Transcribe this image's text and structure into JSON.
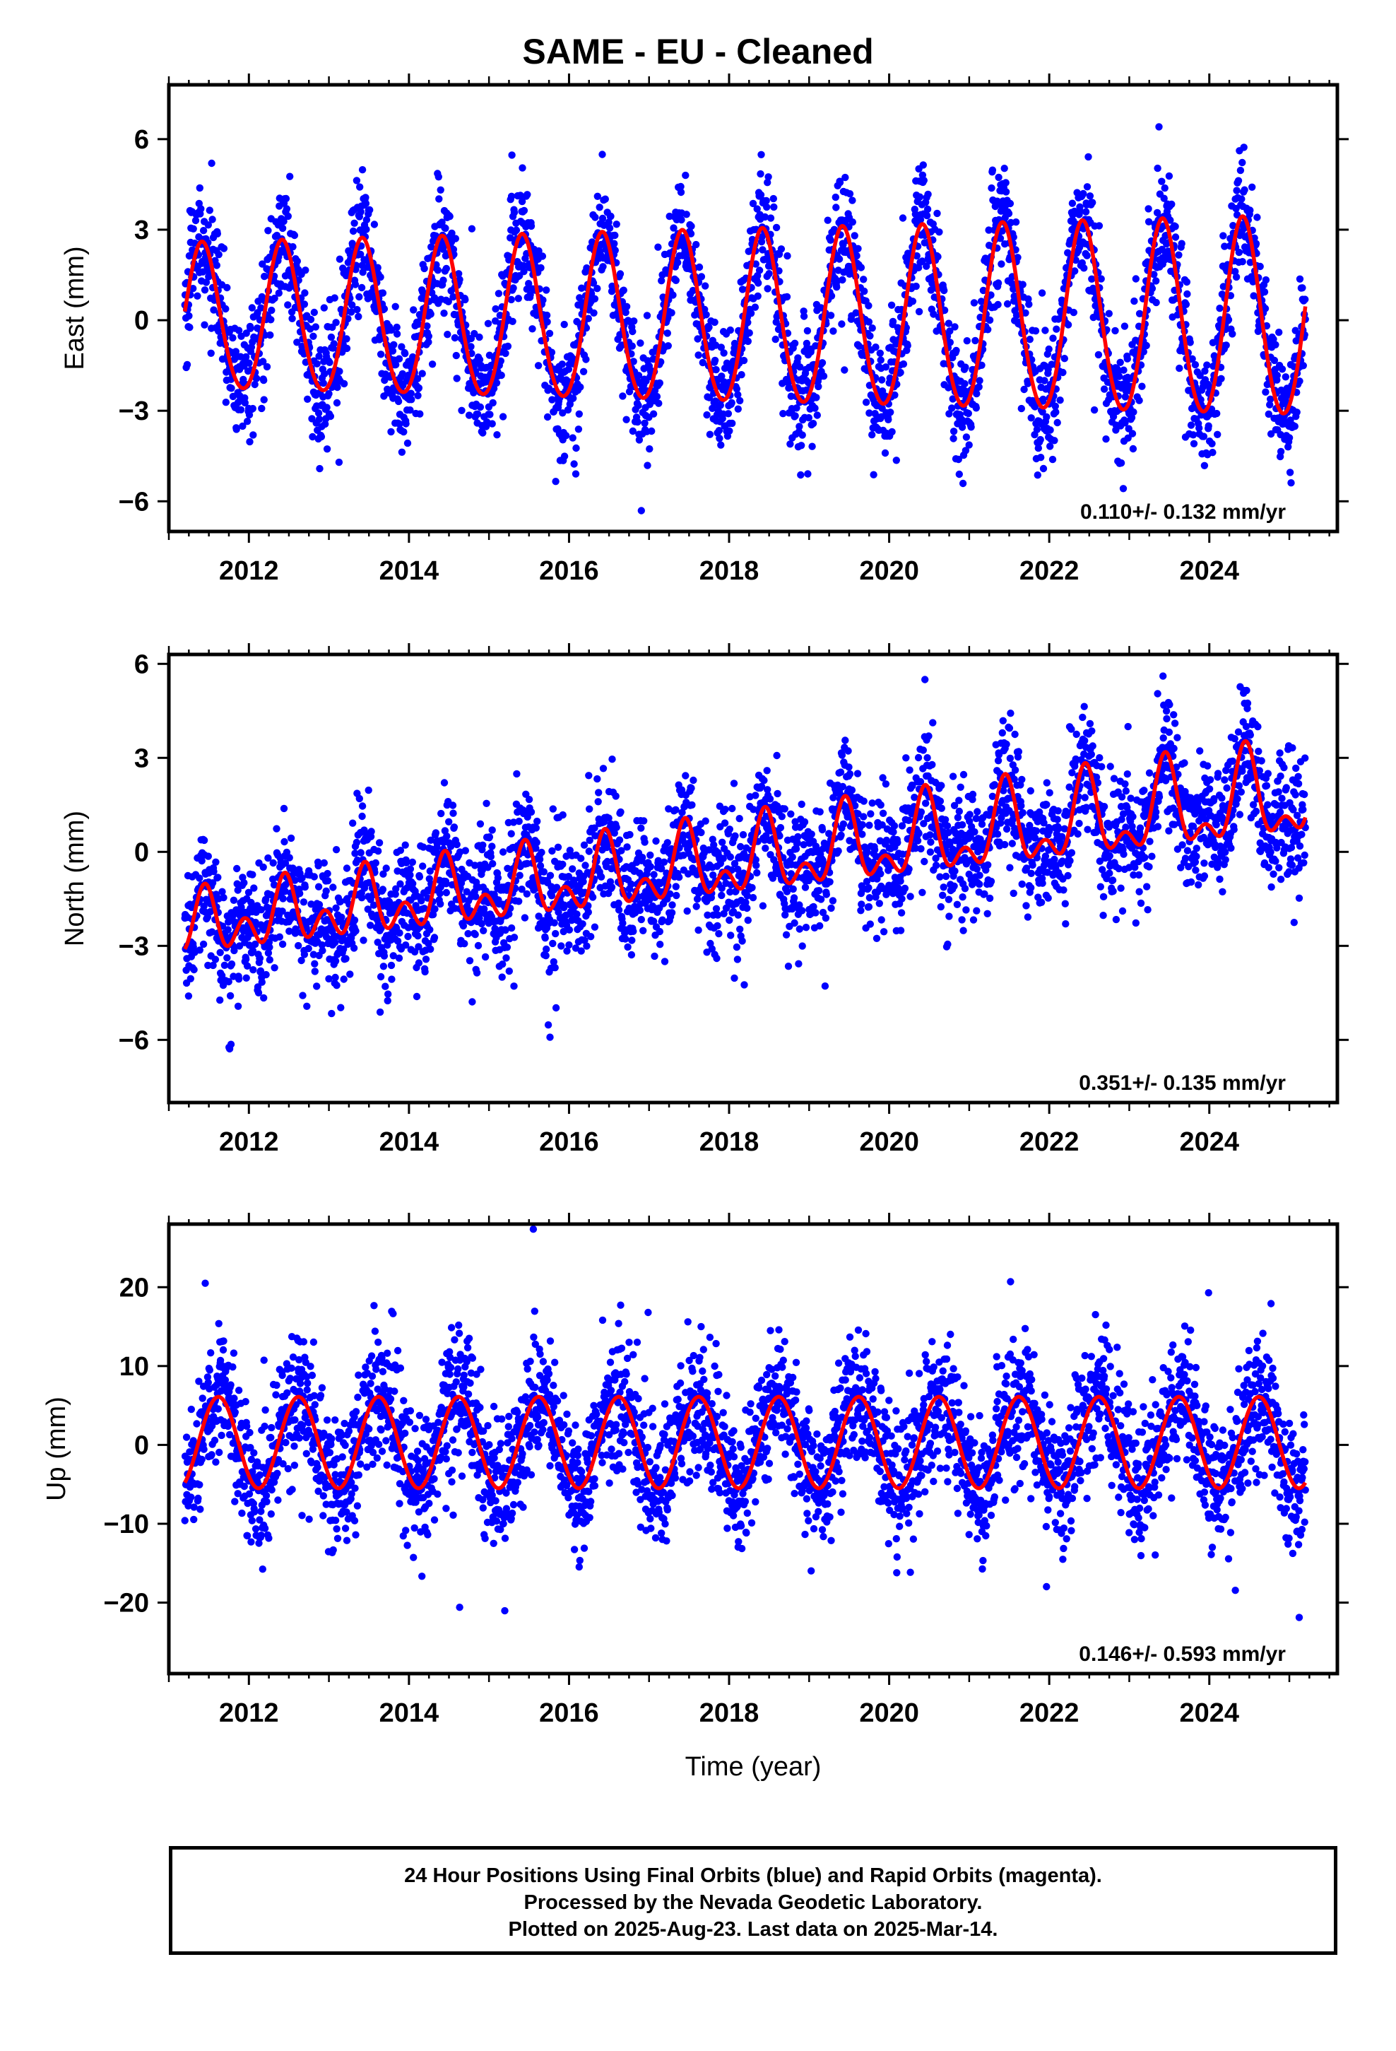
{
  "title": "SAME  - EU - Cleaned",
  "colors": {
    "final_orbits": "#0000ff",
    "model_fit": "#ff0000",
    "frame": "#000000"
  },
  "chart_data": [
    {
      "type": "scatter",
      "ylabel": "East (mm)",
      "xlim": [
        2011.0,
        2025.6
      ],
      "ylim": [
        -7.0,
        7.8
      ],
      "yticks": [
        -6,
        -3,
        0,
        3,
        6
      ],
      "xticks": [
        2012,
        2014,
        2016,
        2018,
        2020,
        2022,
        2024
      ],
      "trend": "0.110+/- 0.132 mm/yr",
      "fit": {
        "t_start": 2011.2,
        "t_end": 2025.2,
        "offset": 0.0,
        "drift": 0.0,
        "annual_start": 2.4,
        "annual_end": 3.3,
        "annual_phase_peak": 0.42,
        "semiannual": 0.2,
        "semiannual_phase_peak": 0.4
      },
      "scatter": {
        "spread": 1.0,
        "n": 3300
      }
    },
    {
      "type": "scatter",
      "ylabel": "North (mm)",
      "xlim": [
        2011.0,
        2025.6
      ],
      "ylim": [
        -8.0,
        6.3
      ],
      "yticks": [
        -6,
        -3,
        0,
        3,
        6
      ],
      "xticks": [
        2012,
        2014,
        2016,
        2018,
        2020,
        2022,
        2024
      ],
      "trend": "0.351+/- 0.135 mm/yr",
      "fit": {
        "t_start": 2011.2,
        "t_end": 2025.2,
        "offset": -2.4,
        "drift": 0.3,
        "annual_start": 0.6,
        "annual_end": 1.3,
        "annual_phase_peak": 0.45,
        "semiannual": 0.7,
        "semiannual_phase_peak": 0.45
      },
      "scatter": {
        "spread": 1.0,
        "n": 3300
      }
    },
    {
      "type": "scatter",
      "ylabel": "Up (mm)",
      "xlim": [
        2011.0,
        2025.6
      ],
      "ylim": [
        -29.0,
        28.0
      ],
      "yticks": [
        -20,
        -10,
        0,
        10,
        20
      ],
      "xticks": [
        2012,
        2014,
        2016,
        2018,
        2020,
        2022,
        2024
      ],
      "trend": "0.146+/- 0.593 mm/yr",
      "fit": {
        "t_start": 2011.2,
        "t_end": 2025.2,
        "offset": 0.3,
        "drift": 0.0,
        "annual_start": 5.8,
        "annual_end": 5.8,
        "annual_phase_peak": 0.62,
        "semiannual": 0.0,
        "semiannual_phase_peak": 0.0
      },
      "scatter": {
        "spread": 4.2,
        "n": 3300
      }
    }
  ],
  "xlabel": "Time (year)",
  "footnote": {
    "line1": "24 Hour Positions Using Final Orbits (blue) and Rapid Orbits (magenta).",
    "line2": "Processed by the Nevada Geodetic Laboratory.",
    "line3": "Plotted on 2025-Aug-23. Last data on 2025-Mar-14."
  }
}
